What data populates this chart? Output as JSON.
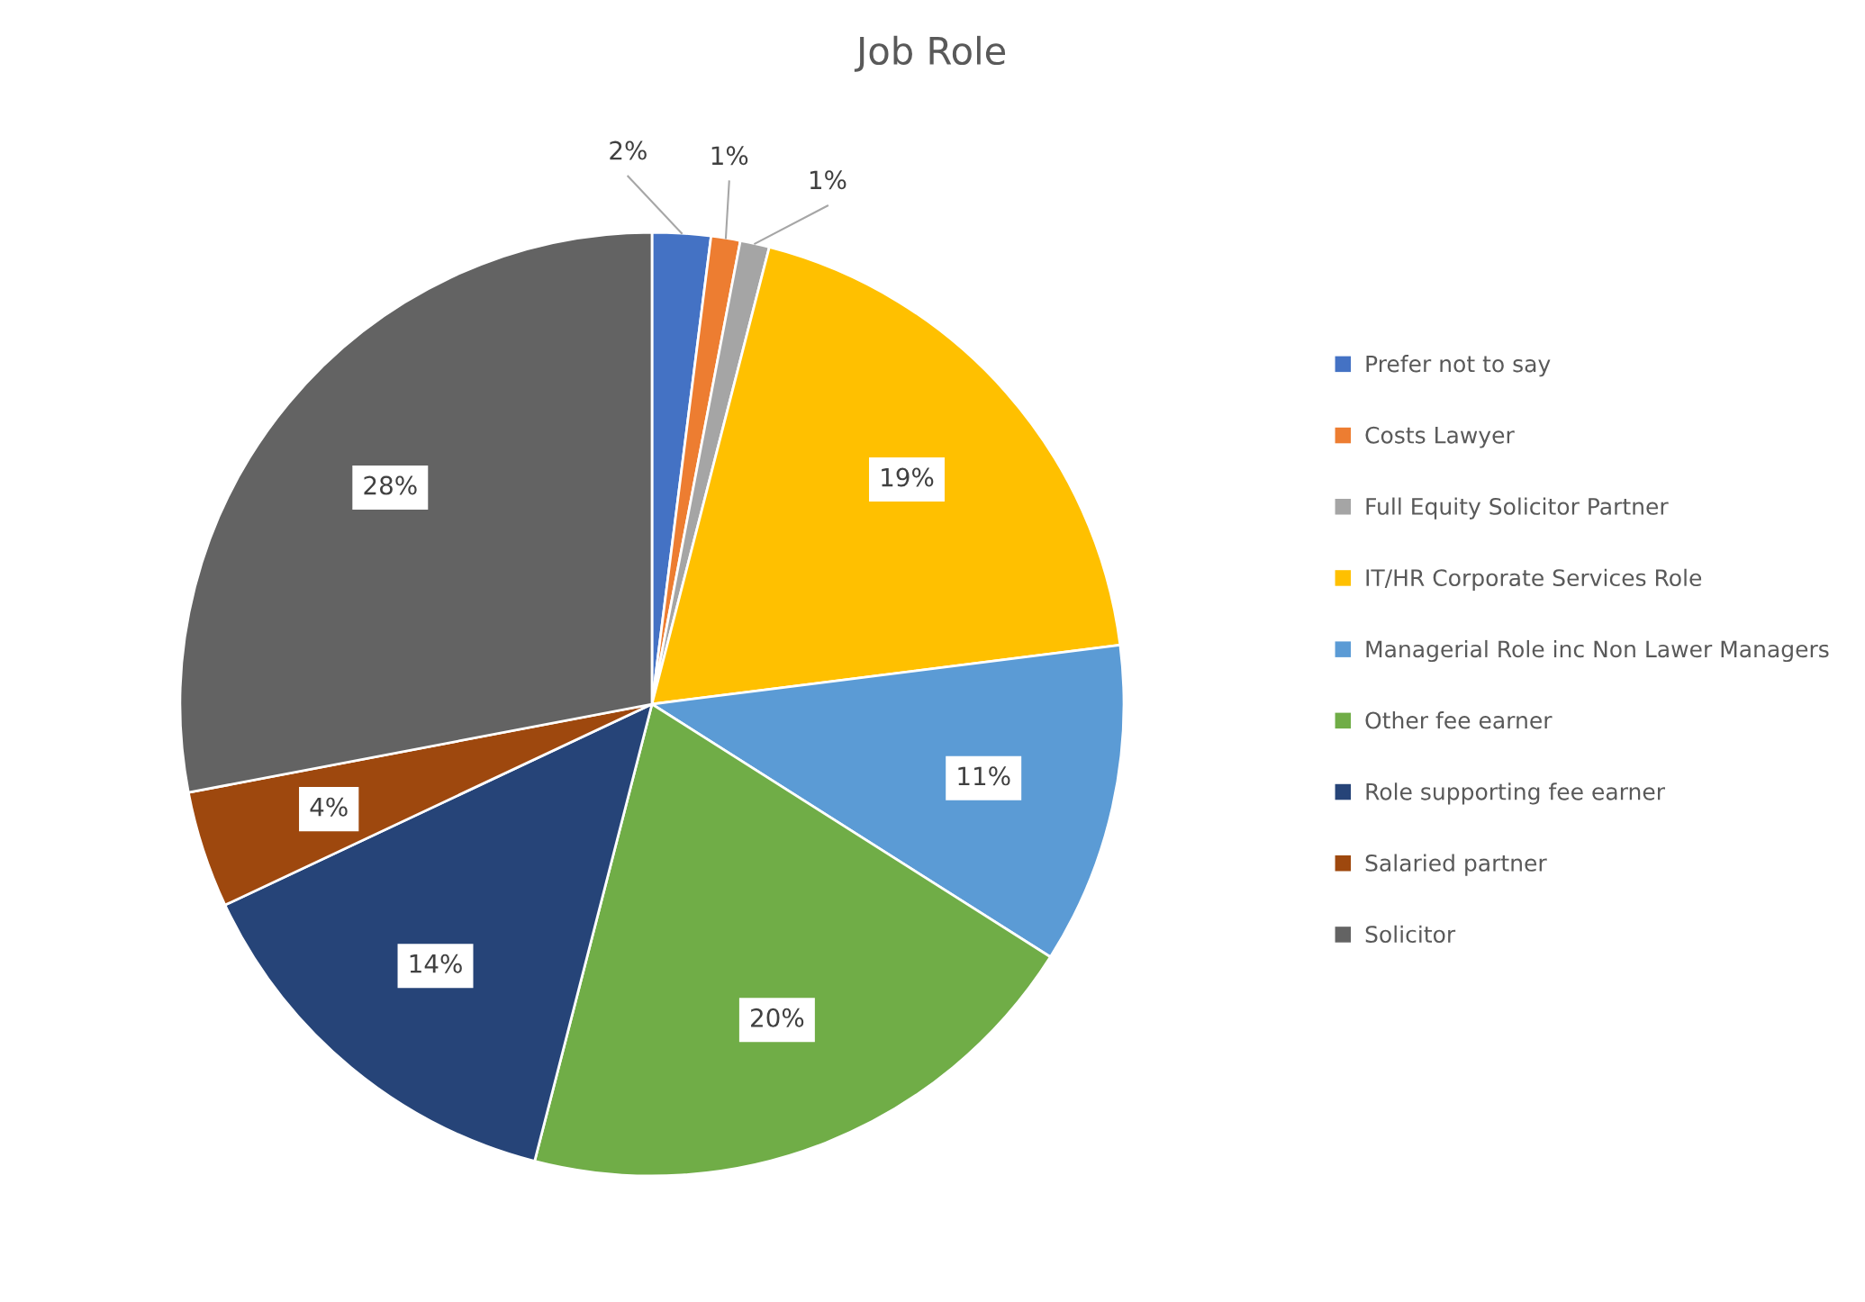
{
  "chart_data": {
    "type": "pie",
    "title": "Job Role",
    "categories": [
      "Prefer not to say",
      "Costs Lawyer",
      "Full Equity Solicitor Partner",
      "IT/HR Corporate Services Role",
      "Managerial Role inc Non Lawer Managers",
      "Other fee earner",
      "Role supporting fee earner",
      "Salaried partner",
      "Solicitor"
    ],
    "values": [
      2,
      1,
      1,
      19,
      11,
      20,
      14,
      4,
      28
    ],
    "colors": [
      "#4472c4",
      "#ed7d31",
      "#a5a5a5",
      "#ffc000",
      "#5b9bd5",
      "#70ad47",
      "#264478",
      "#9e480e",
      "#636363"
    ],
    "value_labels": [
      "2%",
      "1%",
      "1%",
      "19%",
      "11%",
      "20%",
      "14%",
      "4%",
      "28%"
    ],
    "legend": "right"
  }
}
